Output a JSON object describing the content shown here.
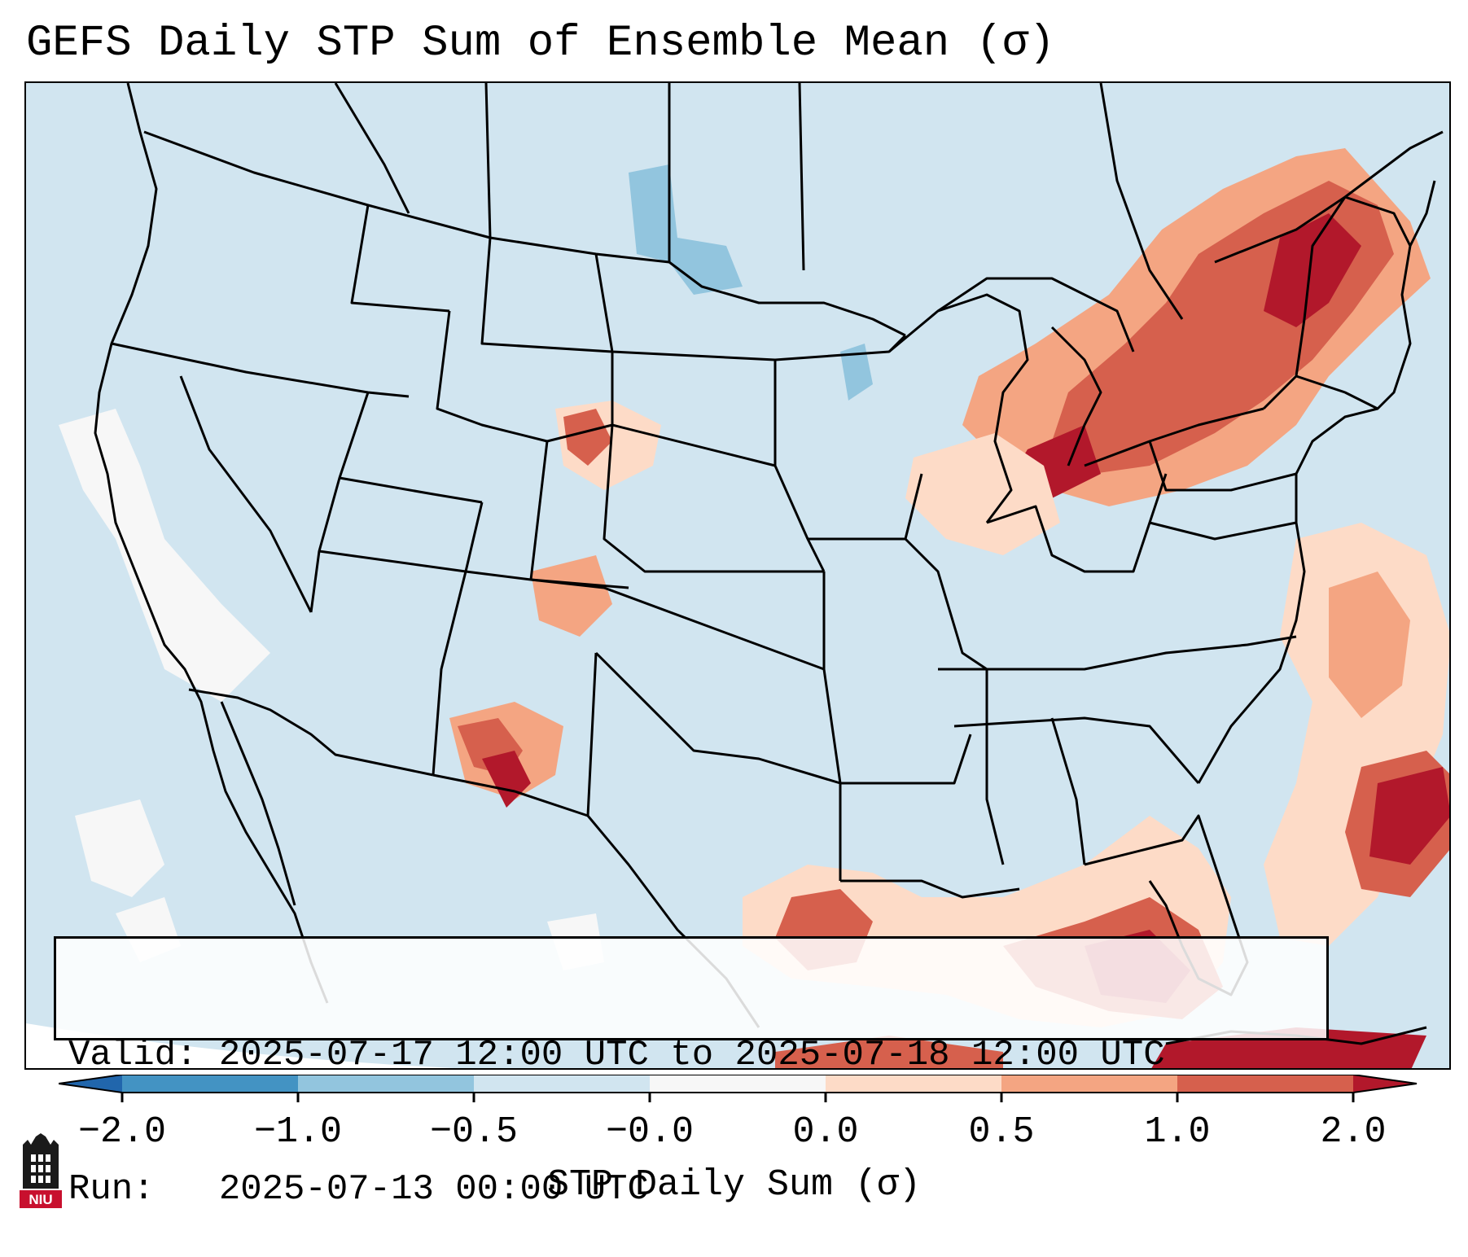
{
  "title": "GEFS Daily STP Sum of Ensemble Mean (σ)",
  "info": {
    "valid_line": "Valid: 2025-07-17 12:00 UTC to 2025-07-18 12:00 UTC",
    "run_line": "Run:   2025-07-13 00:00 UTC"
  },
  "colorbar": {
    "label": "STP Daily Sum (σ)",
    "ticks": [
      "−2.0",
      "−1.0",
      "−0.5",
      "−0.0",
      "0.0",
      "0.5",
      "1.0",
      "2.0"
    ],
    "colors": {
      "below": "#2166ac",
      "bin_neg2_neg1": "#4393c3",
      "bin_neg1_neg05": "#92c5de",
      "bin_neg05_0": "#d1e5f0",
      "bin_zero": "#f7f7f7",
      "bin_0_05": "#fddbc7",
      "bin_05_1": "#f4a582",
      "bin_1_2": "#d6604d",
      "above": "#b2182b"
    }
  },
  "logo_text": "NIU"
}
